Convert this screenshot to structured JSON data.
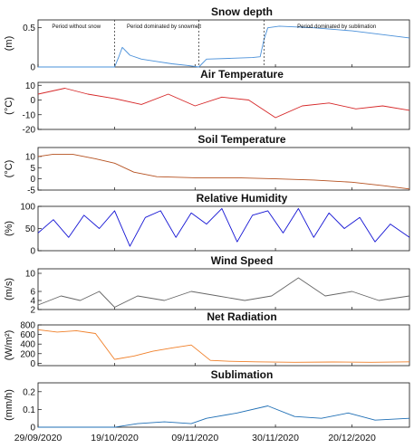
{
  "x_axis": {
    "start": "2020-09-29",
    "end": "2021-01-04",
    "tick_labels": [
      "29/09/2020",
      "19/10/2020",
      "09/11/2020",
      "30/11/2020",
      "20/12/2020"
    ],
    "tick_dates": [
      "2020-09-29",
      "2020-10-19",
      "2020-11-09",
      "2020-11-30",
      "2020-12-20"
    ]
  },
  "chart_data": [
    {
      "type": "line",
      "title": "Snow depth",
      "ylabel": "(m)",
      "ylim": [
        0,
        0.6
      ],
      "yticks": [
        0,
        0.5
      ],
      "color": "#4a90d9",
      "annotations": [
        "Period without snow",
        "Period dominated by snowmelt",
        "Period dominated by sublimation"
      ],
      "period_boundaries": [
        "2020-10-19",
        "2020-11-10",
        "2020-11-27"
      ],
      "x": [
        "2020-09-29",
        "2020-10-19",
        "2020-10-20",
        "2020-10-21",
        "2020-10-23",
        "2020-10-26",
        "2020-10-30",
        "2020-11-03",
        "2020-11-07",
        "2020-11-10",
        "2020-11-12",
        "2020-11-18",
        "2020-11-24",
        "2020-11-26",
        "2020-11-27",
        "2020-11-28",
        "2020-12-01",
        "2020-12-10",
        "2020-12-20",
        "2020-12-30",
        "2021-01-04"
      ],
      "y": [
        0.0,
        0.0,
        0.12,
        0.25,
        0.15,
        0.1,
        0.07,
        0.04,
        0.02,
        0.0,
        0.1,
        0.11,
        0.12,
        0.13,
        0.35,
        0.5,
        0.52,
        0.5,
        0.46,
        0.4,
        0.37
      ]
    },
    {
      "type": "line",
      "title": "Air Temperature",
      "ylabel": "(°C)",
      "ylim": [
        -20,
        12
      ],
      "yticks": [
        -20,
        -10,
        0,
        10
      ],
      "color": "#d62728",
      "x": [
        "2020-09-29",
        "2020-10-06",
        "2020-10-12",
        "2020-10-19",
        "2020-10-26",
        "2020-11-02",
        "2020-11-09",
        "2020-11-16",
        "2020-11-23",
        "2020-11-30",
        "2020-12-07",
        "2020-12-14",
        "2020-12-21",
        "2020-12-28",
        "2021-01-04"
      ],
      "y": [
        4,
        8,
        4,
        1,
        -3,
        4,
        -4,
        2,
        0,
        -12,
        -4,
        -2,
        -6,
        -4,
        -7
      ]
    },
    {
      "type": "line",
      "title": "Soil Temperature",
      "ylabel": "(°C)",
      "ylim": [
        -5,
        14
      ],
      "yticks": [
        -5,
        0,
        5,
        10
      ],
      "color": "#b5501f",
      "x": [
        "2020-09-29",
        "2020-10-03",
        "2020-10-08",
        "2020-10-14",
        "2020-10-19",
        "2020-10-24",
        "2020-10-30",
        "2020-11-09",
        "2020-11-20",
        "2020-11-30",
        "2020-12-10",
        "2020-12-20",
        "2020-12-28",
        "2021-01-04"
      ],
      "y": [
        10,
        11,
        11,
        9,
        7,
        3,
        1,
        0.5,
        0.5,
        0,
        -0.5,
        -1.5,
        -3,
        -4.5
      ]
    },
    {
      "type": "line",
      "title": "Relative Humidity",
      "ylabel": "(%)",
      "ylim": [
        0,
        100
      ],
      "yticks": [
        0,
        50,
        100
      ],
      "color": "#1414d4",
      "x": [
        "2020-09-29",
        "2020-10-03",
        "2020-10-07",
        "2020-10-11",
        "2020-10-15",
        "2020-10-19",
        "2020-10-23",
        "2020-10-27",
        "2020-10-31",
        "2020-11-04",
        "2020-11-08",
        "2020-11-12",
        "2020-11-16",
        "2020-11-20",
        "2020-11-24",
        "2020-11-28",
        "2020-12-02",
        "2020-12-06",
        "2020-12-10",
        "2020-12-14",
        "2020-12-18",
        "2020-12-22",
        "2020-12-26",
        "2020-12-30",
        "2021-01-04"
      ],
      "y": [
        40,
        70,
        30,
        80,
        50,
        90,
        10,
        75,
        90,
        30,
        85,
        60,
        95,
        20,
        80,
        90,
        40,
        95,
        30,
        85,
        50,
        75,
        20,
        60,
        30
      ]
    },
    {
      "type": "line",
      "title": "Wind Speed",
      "ylabel": "(m/s)",
      "ylim": [
        2,
        11
      ],
      "yticks": [
        2,
        4,
        6,
        10
      ],
      "color": "#666666",
      "x": [
        "2020-09-29",
        "2020-10-05",
        "2020-10-10",
        "2020-10-15",
        "2020-10-19",
        "2020-10-25",
        "2020-11-01",
        "2020-11-08",
        "2020-11-15",
        "2020-11-22",
        "2020-11-29",
        "2020-12-06",
        "2020-12-13",
        "2020-12-20",
        "2020-12-27",
        "2021-01-04"
      ],
      "y": [
        3,
        5,
        4,
        6,
        2.5,
        5,
        4,
        6,
        5,
        4,
        5,
        9,
        5,
        6,
        4,
        5
      ]
    },
    {
      "type": "line",
      "title": "Net Radiation",
      "ylabel": "(W/m²)",
      "ylim": [
        -50,
        800
      ],
      "yticks": [
        0,
        200,
        400,
        600,
        800
      ],
      "color": "#f07f28",
      "x": [
        "2020-09-29",
        "2020-10-04",
        "2020-10-09",
        "2020-10-14",
        "2020-10-19",
        "2020-10-24",
        "2020-10-29",
        "2020-11-03",
        "2020-11-08",
        "2020-11-13",
        "2020-11-18",
        "2020-11-25",
        "2020-12-05",
        "2020-12-15",
        "2020-12-25",
        "2021-01-04"
      ],
      "y": [
        700,
        650,
        680,
        620,
        80,
        150,
        250,
        320,
        380,
        60,
        40,
        30,
        20,
        25,
        20,
        30
      ]
    },
    {
      "type": "line",
      "title": "Sublimation",
      "ylabel": "(mm/h)",
      "ylim": [
        0,
        0.25
      ],
      "yticks": [
        0,
        0.1,
        0.2
      ],
      "color": "#1f6fb5",
      "x": [
        "2020-09-29",
        "2020-10-19",
        "2020-10-25",
        "2020-11-01",
        "2020-11-08",
        "2020-11-12",
        "2020-11-20",
        "2020-11-28",
        "2020-12-05",
        "2020-12-12",
        "2020-12-19",
        "2020-12-26",
        "2021-01-04"
      ],
      "y": [
        0,
        0,
        0.02,
        0.03,
        0.02,
        0.05,
        0.08,
        0.12,
        0.06,
        0.05,
        0.08,
        0.04,
        0.05
      ]
    }
  ]
}
